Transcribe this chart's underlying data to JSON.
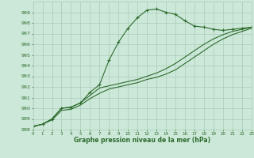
{
  "xlabel": "Graphe pression niveau de la mer (hPa)",
  "background_color": "#cce8d8",
  "grid_color": "#aaccbb",
  "line_color": "#2d6b2d",
  "ylim": [
    988,
    1000
  ],
  "xlim": [
    0,
    23
  ],
  "yticks": [
    988,
    989,
    990,
    991,
    992,
    993,
    994,
    995,
    996,
    997,
    998,
    999
  ],
  "xticks": [
    0,
    1,
    2,
    3,
    4,
    5,
    6,
    7,
    8,
    9,
    10,
    11,
    12,
    13,
    14,
    15,
    16,
    17,
    18,
    19,
    20,
    21,
    22,
    23
  ],
  "line1_x": [
    0,
    1,
    2,
    3,
    4,
    5,
    6,
    7,
    8,
    9,
    10,
    11,
    12,
    13,
    14,
    15,
    16,
    17,
    18,
    19,
    20,
    21,
    22,
    23
  ],
  "line1_y": [
    988.3,
    988.5,
    989.0,
    990.0,
    990.1,
    990.5,
    991.5,
    992.2,
    994.5,
    996.2,
    997.5,
    998.5,
    999.2,
    999.3,
    999.0,
    998.8,
    998.2,
    997.7,
    997.6,
    997.4,
    997.3,
    997.4,
    997.5,
    997.6
  ],
  "line2_x": [
    0,
    1,
    2,
    3,
    4,
    5,
    6,
    7,
    8,
    9,
    10,
    11,
    12,
    13,
    14,
    15,
    16,
    17,
    18,
    19,
    20,
    21,
    22,
    23
  ],
  "line2_y": [
    988.3,
    988.5,
    989.0,
    990.0,
    990.1,
    990.5,
    991.2,
    991.9,
    992.1,
    992.3,
    992.5,
    992.7,
    993.0,
    993.3,
    993.7,
    994.2,
    994.8,
    995.4,
    996.0,
    996.5,
    996.9,
    997.2,
    997.4,
    997.6
  ],
  "line3_x": [
    0,
    1,
    2,
    3,
    4,
    5,
    6,
    7,
    8,
    9,
    10,
    11,
    12,
    13,
    14,
    15,
    16,
    17,
    18,
    19,
    20,
    21,
    22,
    23
  ],
  "line3_y": [
    988.3,
    988.5,
    988.9,
    989.8,
    989.9,
    990.3,
    990.9,
    991.4,
    991.8,
    992.0,
    992.2,
    992.4,
    992.7,
    992.9,
    993.2,
    993.6,
    994.2,
    994.8,
    995.4,
    996.0,
    996.5,
    996.9,
    997.2,
    997.5
  ]
}
